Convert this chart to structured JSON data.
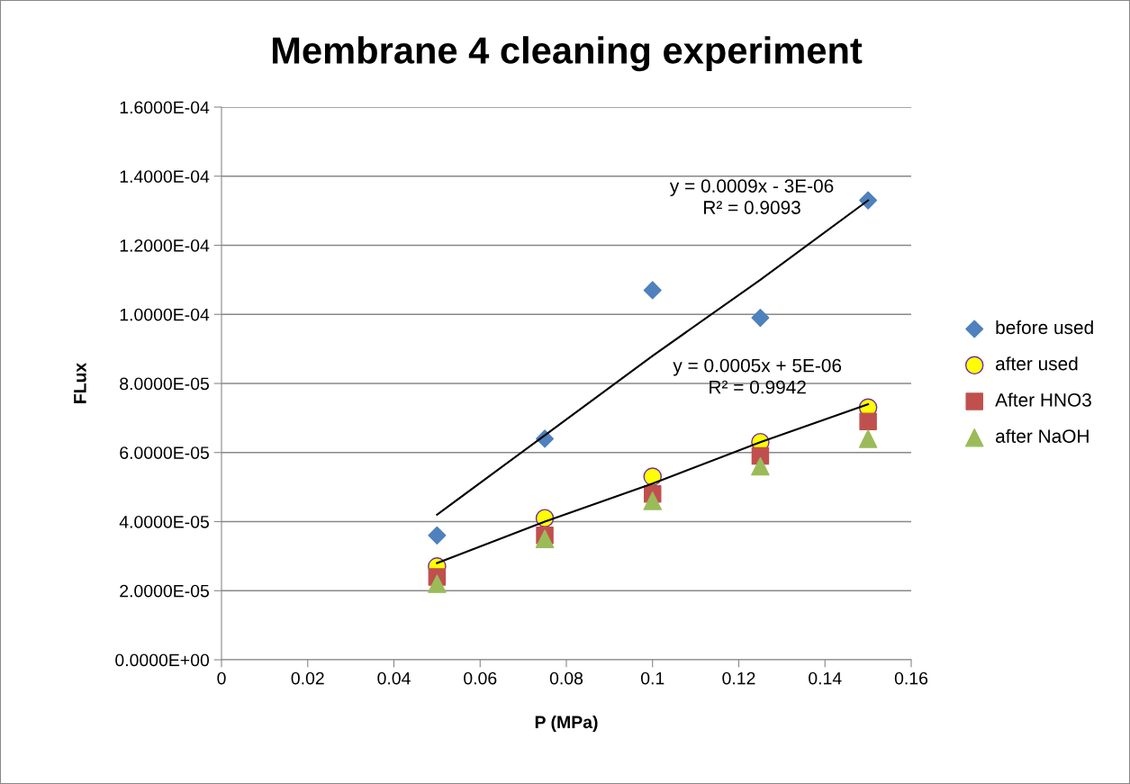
{
  "chart_data": {
    "type": "scatter",
    "title": "Membrane 4 cleaning experiment",
    "xlabel": "P (MPa)",
    "ylabel": "FLux",
    "x": [
      0.05,
      0.075,
      0.1,
      0.125,
      0.15
    ],
    "series": [
      {
        "name": "before used",
        "color": "#4f81bd",
        "marker": "diamond",
        "values": [
          3.6e-05,
          6.4e-05,
          0.000107,
          9.9e-05,
          0.000133
        ]
      },
      {
        "name": "after used",
        "color": "#ffff00",
        "marker": "circle",
        "values": [
          2.7e-05,
          4.1e-05,
          5.3e-05,
          6.3e-05,
          7.3e-05
        ]
      },
      {
        "name": "After HNO3",
        "color": "#c0504d",
        "marker": "square",
        "values": [
          2.4e-05,
          3.6e-05,
          4.8e-05,
          5.9e-05,
          6.9e-05
        ]
      },
      {
        "name": "after NaOH",
        "color": "#9bbb59",
        "marker": "triangle",
        "values": [
          2.2e-05,
          3.5e-05,
          4.6e-05,
          5.6e-05,
          6.4e-05
        ]
      },
      {
        "type": "line",
        "color": "#000000",
        "values": [
          4.2e-05,
          6.5e-05,
          8.8e-05,
          0.00011,
          0.000133
        ]
      },
      {
        "type": "line",
        "color": "#000000",
        "values": [
          2.8e-05,
          4e-05,
          5.1e-05,
          6.3e-05,
          7.4e-05
        ]
      }
    ],
    "xlim": [
      0,
      0.16
    ],
    "xticks": [
      0,
      0.02,
      0.04,
      0.06,
      0.08,
      0.1,
      0.12,
      0.14,
      0.16
    ],
    "ylim": [
      0,
      0.00016
    ],
    "yticks": [
      {
        "value": 0,
        "label": "0.0000E+00"
      },
      {
        "value": 2e-05,
        "label": "2.0000E-05"
      },
      {
        "value": 4e-05,
        "label": "4.0000E-05"
      },
      {
        "value": 6e-05,
        "label": "6.0000E-05"
      },
      {
        "value": 8e-05,
        "label": "8.0000E-05"
      },
      {
        "value": 0.0001,
        "label": "1.0000E-04"
      },
      {
        "value": 0.00012,
        "label": "1.2000E-04"
      },
      {
        "value": 0.00014,
        "label": "1.4000E-04"
      },
      {
        "value": 0.00016,
        "label": "1.6000E-04"
      }
    ],
    "grid": "y",
    "legend": "right",
    "annotations": [
      "y = 0.0009x - 3E-06\nR² = 0.9093",
      "y = 0.0005x + 5E-06\nR² = 0.9942"
    ]
  }
}
